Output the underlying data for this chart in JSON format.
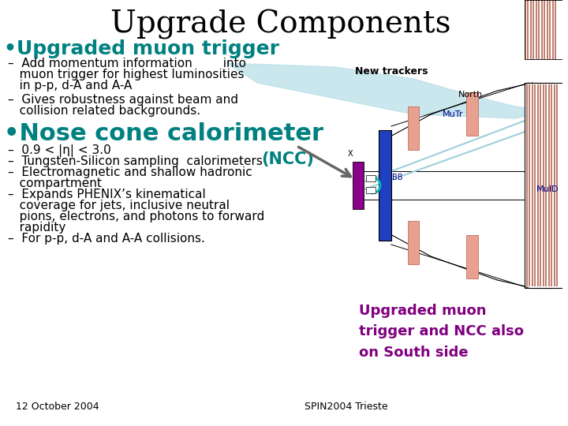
{
  "title": "Upgrade Components",
  "title_fontsize": 28,
  "title_color": "#000000",
  "background_color": "#ffffff",
  "bullet1_header": "•Upgraded muon trigger",
  "bullet1_color": "#008080",
  "bullet1_item1_line1": "–  Add momentum information        into",
  "bullet1_item1_line2": "   muon trigger for highest luminosities",
  "bullet1_item1_line3": "   in p-p, d-A and A-A",
  "bullet1_item2_line1": "–  Gives robustness against beam and",
  "bullet1_item2_line2": "   collision related backgrounds.",
  "bullet2_header": "•Nose cone calorimeter",
  "bullet2_color": "#008080",
  "bullet2_item1": "–  0.9 < |η| < 3.0",
  "bullet2_item2": "–  Tungsten-Silicon sampling  calorimeters",
  "bullet2_item3_line1": "–  Electromagnetic and shallow hadronic",
  "bullet2_item3_line2": "   compartment",
  "bullet2_item4_line1": "–  Expands PHENIX’s kinematical",
  "bullet2_item4_line2": "   coverage for jets, inclusive neutral",
  "bullet2_item4_line3": "   pions, electrons, and photons to forward",
  "bullet2_item4_line4": "   rapidity",
  "bullet2_item5": "–  For p-p, d-A and A-A collisions.",
  "ncc_label": "(NCC)",
  "ncc_color": "#008080",
  "new_trackers_label": "New trackers",
  "bottom_text": "Upgraded muon\ntrigger and NCC also\non South side",
  "bottom_text_color": "#800080",
  "footer_left": "12 October 2004",
  "footer_right": "SPIN2004 Trieste",
  "footer_color": "#000000",
  "item_fontsize": 11,
  "bullet1_header_fontsize": 18,
  "bullet2_header_fontsize": 22
}
